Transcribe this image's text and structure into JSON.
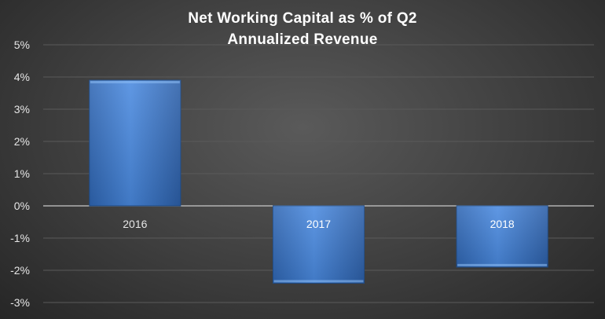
{
  "chart_data": {
    "type": "bar",
    "title": "Net Working Capital as % of Q2 Annualized Revenue",
    "title_lines": [
      "Net Working Capital as % of Q2",
      "Annualized Revenue"
    ],
    "categories": [
      "2016",
      "2017",
      "2018"
    ],
    "values": [
      3.9,
      -2.4,
      -1.9
    ],
    "unit": "%",
    "ylim": [
      -3,
      5
    ],
    "yticks": [
      5,
      4,
      3,
      2,
      1,
      0,
      -1,
      -2,
      -3
    ],
    "ytick_labels": [
      "5%",
      "4%",
      "3%",
      "2%",
      "1%",
      "0%",
      "-1%",
      "-2%",
      "-3%"
    ],
    "xlabel": "",
    "ylabel": "",
    "grid": true,
    "legend": "none",
    "colors": {
      "bar_top": "#6ea8ea",
      "bar_mid": "#3f7fd0",
      "bar_bottom": "#2a5fa8",
      "bar_edge": "#1f4f8f",
      "grid": "#5a5a5a",
      "zero_line": "#c8c8c8"
    }
  }
}
